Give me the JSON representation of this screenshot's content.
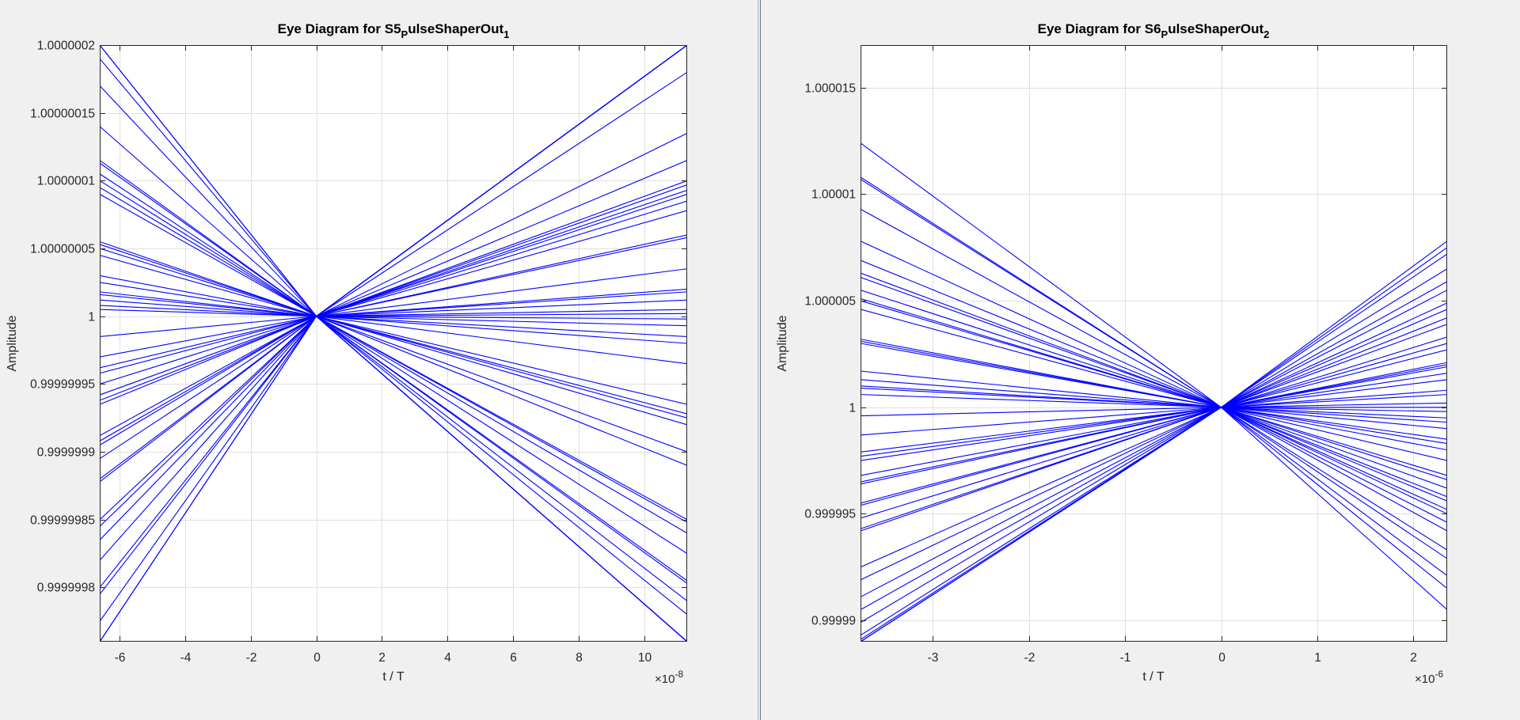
{
  "colors": {
    "line": "#0000ff",
    "grid": "#dfdfdf",
    "axes": "#262626",
    "figure_bg": "#f0f0f0",
    "axes_bg": "#ffffff"
  },
  "chart_data": [
    {
      "type": "line",
      "title": "Eye Diagram for S5",
      "title_sub": "P",
      "title_rest": "ulseShaperOut",
      "title_sub2": "1",
      "xlabel": "t / T",
      "ylabel": "Amplitude",
      "x_exponent": "-8",
      "xlim": [
        -6.6,
        11.3
      ],
      "ylim": [
        0.99999976,
        1.0000002
      ],
      "xticks": [
        -6,
        -4,
        -2,
        0,
        2,
        4,
        6,
        8,
        10
      ],
      "xtick_labels": [
        "-6",
        "-4",
        "-2",
        "0",
        "2",
        "4",
        "6",
        "8",
        "10"
      ],
      "yticks": [
        0.9999998,
        0.99999985,
        0.9999999,
        0.99999995,
        1,
        1.00000005,
        1.0000001,
        1.00000015,
        1.0000002
      ],
      "ytick_labels": [
        "0.9999998",
        "0.99999985",
        "0.9999999",
        "0.99999995",
        "1",
        "1.00000005",
        "1.0000001",
        "1.00000015",
        "1.0000002"
      ],
      "grid": true,
      "crossing": [
        0,
        1
      ],
      "left_endpoints": [
        1.0000002,
        1.0000002,
        1.00000019,
        1.00000017,
        1.00000014,
        1.000000115,
        1.000000113,
        1.000000105,
        1.0000001,
        1.000000095,
        1.00000009,
        1.000000055,
        1.000000053,
        1.00000005,
        1.000000045,
        1.00000003,
        1.000000025,
        1.000000018,
        1.000000016,
        1.000000012,
        1.000000008,
        1.000000005,
        0.999999985,
        0.99999997,
        0.999999962,
        0.999999958,
        0.99999995,
        0.999999942,
        0.999999938,
        0.999999935,
        0.999999912,
        0.999999908,
        0.999999905,
        0.999999895,
        0.99999988,
        0.999999878,
        0.99999985,
        0.999999845,
        0.999999835,
        0.99999982,
        0.9999998,
        0.999999795,
        0.999999775,
        0.99999976,
        0.99999976
      ],
      "right_endpoints": [
        1.0000002,
        1.0000002,
        1.0000002,
        1.0000002,
        1.0000002,
        1.0000002,
        1.0000002,
        1.00000018,
        1.000000135,
        1.000000115,
        1.0000001,
        1.000000097,
        1.000000093,
        1.00000009,
        1.000000085,
        1.000000078,
        1.00000006,
        1.000000058,
        1.000000035,
        1.00000002,
        1.000000018,
        1.000000012,
        1.000000005,
        1.000000002,
        0.999999998,
        0.999999993,
        0.999999985,
        0.99999998,
        0.999999965,
        0.999999935,
        0.999999928,
        0.999999925,
        0.99999992,
        0.9999999,
        0.99999989,
        0.99999985,
        0.999999848,
        0.99999984,
        0.999999825,
        0.999999805,
        0.999999803,
        0.99999979,
        0.99999978,
        0.99999976,
        0.99999976,
        0.99999976,
        0.99999976,
        0.99999976
      ]
    },
    {
      "type": "line",
      "title": "Eye Diagram for S6",
      "title_sub": "P",
      "title_rest": "ulseShaperOut",
      "title_sub2": "2",
      "xlabel": "t / T",
      "ylabel": "Amplitude",
      "x_exponent": "-6",
      "xlim": [
        -3.75,
        2.35
      ],
      "ylim": [
        0.999989,
        1.000017
      ],
      "xticks": [
        -3,
        -2,
        -1,
        0,
        1,
        2
      ],
      "xtick_labels": [
        "-3",
        "-2",
        "-1",
        "0",
        "1",
        "2"
      ],
      "yticks": [
        0.99999,
        0.999995,
        1,
        1.000005,
        1.00001,
        1.000015
      ],
      "ytick_labels": [
        "0.99999",
        "0.999995",
        "1",
        "1.000005",
        "1.00001",
        "1.000015"
      ],
      "grid": true,
      "crossing": [
        0,
        1
      ],
      "left_endpoints": [
        1.0000124,
        1.0000108,
        1.0000107,
        1.0000093,
        1.0000078,
        1.0000069,
        1.0000063,
        1.0000061,
        1.0000055,
        1.0000051,
        1.000005,
        1.0000046,
        1.0000032,
        1.0000031,
        1.000003,
        1.0000017,
        1.0000013,
        1.000001,
        1.0000009,
        1.0000006,
        0.9999996,
        0.9999987,
        0.9999979,
        0.9999977,
        0.9999975,
        0.9999968,
        0.9999965,
        0.9999964,
        0.9999955,
        0.9999954,
        0.9999948,
        0.9999943,
        0.9999942,
        0.9999925,
        0.9999919,
        0.9999911,
        0.9999905,
        0.9999899,
        0.9999893,
        0.9999891,
        0.999989,
        0.999989,
        0.999989
      ],
      "right_endpoints": [
        1.0000078,
        1.0000075,
        1.0000072,
        1.0000065,
        1.0000059,
        1.0000055,
        1.0000049,
        1.0000046,
        1.0000042,
        1.0000039,
        1.0000033,
        1.000003,
        1.0000027,
        1.0000021,
        1.000002,
        1.0000019,
        1.0000016,
        1.0000013,
        1.0000008,
        1.0000006,
        1.0000002,
        1.0,
        0.9999998,
        0.9999995,
        0.9999993,
        0.999999,
        0.9999985,
        0.9999983,
        0.999998,
        0.9999975,
        0.9999968,
        0.9999966,
        0.9999962,
        0.9999958,
        0.9999956,
        0.9999952,
        0.999995,
        0.9999946,
        0.9999942,
        0.9999933,
        0.9999929,
        0.9999921,
        0.9999915,
        0.9999905
      ]
    }
  ]
}
